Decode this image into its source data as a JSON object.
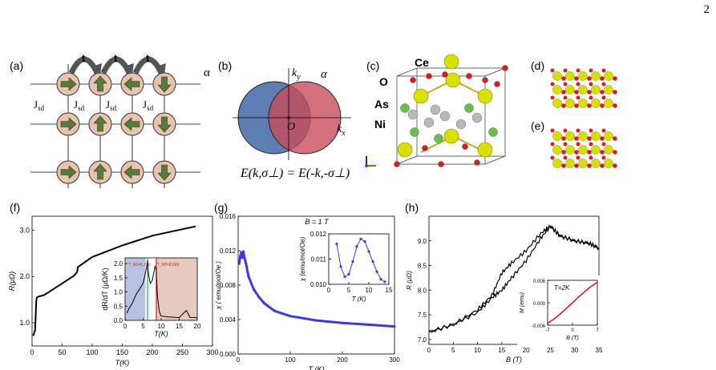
{
  "page_number": "2",
  "panels": {
    "a": {
      "label": "(a)",
      "hop_label": "t",
      "coupling_label": "J",
      "coupling_sub": "sd",
      "alpha": "α",
      "arrow_grid": [
        [
          "right",
          "up",
          "left",
          "down"
        ],
        [
          "right",
          "up",
          "left",
          "down"
        ],
        [
          "right",
          "up",
          "left",
          "down"
        ]
      ]
    },
    "b": {
      "label": "(b)",
      "ky": "k",
      "ky_sub": "y",
      "kx": "k",
      "kx_sub": "x",
      "alpha": "α",
      "origin": "O",
      "equation": "E(k,σ⊥) = E(-k,-σ⊥)"
    },
    "c": {
      "label": "(c)",
      "atoms": [
        "Ce",
        "O",
        "As",
        "Ni"
      ]
    },
    "d": {
      "label": "(d)"
    },
    "e": {
      "label": "(e)"
    }
  },
  "chart_data": [
    {
      "panel": "(f)",
      "type": "line",
      "xlabel": "T(K)",
      "ylabel": "R(μΩ)",
      "xlim": [
        0,
        300
      ],
      "ylim": [
        0.5,
        3.3
      ],
      "xticks": [
        "0",
        "50",
        "100",
        "150",
        "200",
        "250",
        "300"
      ],
      "yticks": [
        "1.0",
        "2.0",
        "3.0"
      ],
      "x": [
        2,
        5,
        7,
        8,
        12,
        20,
        30,
        50,
        70,
        75,
        76,
        100,
        150,
        200,
        250,
        272
      ],
      "y": [
        0.72,
        0.85,
        1.48,
        1.55,
        1.57,
        1.6,
        1.68,
        1.85,
        2.02,
        2.1,
        2.2,
        2.42,
        2.67,
        2.88,
        3.02,
        3.08
      ],
      "inset": {
        "type": "line",
        "xlabel": "T(K)",
        "ylabel": "dR/dT (μΩ/K)",
        "xlim": [
          0,
          20
        ],
        "ylim": [
          0,
          2.2
        ],
        "xticks": [
          "0",
          "5",
          "10",
          "15",
          "20"
        ],
        "yticks": [
          "0.0",
          "0.5",
          "1.0",
          "1.5",
          "2.0"
        ],
        "annotations": [
          "T_N1=6.23K",
          "T_N2=8.66K"
        ],
        "x": [
          0.5,
          1,
          2,
          3,
          4,
          5,
          5.5,
          6,
          6.2,
          6.5,
          7,
          7.5,
          8,
          8.3,
          8.6,
          9,
          9.5,
          10,
          12,
          15,
          17,
          18,
          20
        ],
        "y": [
          0.25,
          0.4,
          0.6,
          0.9,
          1.1,
          1.3,
          1.6,
          1.9,
          2.1,
          1.6,
          1.3,
          1.4,
          1.7,
          1.9,
          1.8,
          0.8,
          0.3,
          0.15,
          0.12,
          0.1,
          0.35,
          0.1,
          0.1
        ]
      }
    },
    {
      "panel": "(g)",
      "type": "scatter",
      "annotation": "B = 1 T",
      "xlabel": "T (K)",
      "ylabel": "χ ( emu/mol/Oe )",
      "xlim": [
        0,
        300
      ],
      "ylim": [
        0,
        0.016
      ],
      "xticks": [
        "0",
        "100",
        "200",
        "300"
      ],
      "yticks": [
        "0.000",
        "0.004",
        "0.008",
        "0.012",
        "0.016"
      ],
      "x": [
        2,
        4,
        6,
        8,
        10,
        12,
        15,
        20,
        30,
        40,
        50,
        70,
        100,
        150,
        200,
        250,
        300
      ],
      "y": [
        0.0105,
        0.0113,
        0.0118,
        0.0112,
        0.0119,
        0.0112,
        0.0105,
        0.009,
        0.0075,
        0.0066,
        0.0059,
        0.005,
        0.0044,
        0.0039,
        0.0036,
        0.0034,
        0.0032
      ],
      "inset": {
        "type": "scatter",
        "xlabel": "T (K)",
        "ylabel": "χ (emu/mol/Oe)",
        "xlim": [
          0,
          15
        ],
        "ylim": [
          0.01,
          0.012
        ],
        "xticks": [
          "0",
          "5",
          "10",
          "15"
        ],
        "yticks": [
          "0.010",
          "0.011",
          "0.012"
        ],
        "x": [
          2,
          3,
          4,
          5,
          6,
          7,
          8,
          9,
          10,
          11,
          12,
          13,
          14
        ],
        "y": [
          0.0116,
          0.0107,
          0.0103,
          0.0104,
          0.0109,
          0.0115,
          0.0118,
          0.0117,
          0.0113,
          0.0109,
          0.0105,
          0.0102,
          0.0101
        ]
      }
    },
    {
      "panel": "(h)",
      "type": "line",
      "xlabel": "B (T)",
      "ylabel": "R (μΩ)",
      "xlim": [
        0,
        35
      ],
      "ylim": [
        6.9,
        9.5
      ],
      "xticks": [
        "0",
        "5",
        "10",
        "15",
        "20",
        "25",
        "30",
        "35"
      ],
      "yticks": [
        "7.0",
        "7.5",
        "8.0",
        "8.5",
        "9.0"
      ],
      "series": [
        {
          "x": [
            0,
            5,
            10,
            13,
            15,
            17,
            20,
            23,
            25,
            27,
            30,
            33,
            35
          ],
          "y": [
            7.15,
            7.3,
            7.6,
            7.9,
            8.35,
            8.55,
            8.8,
            9.15,
            9.3,
            9.1,
            9.0,
            8.95,
            8.85
          ]
        },
        {
          "x": [
            0,
            5,
            10,
            13,
            15,
            17,
            20,
            23,
            25,
            27,
            30,
            33,
            35
          ],
          "y": [
            7.15,
            7.3,
            7.55,
            7.85,
            8.0,
            8.25,
            8.6,
            9.05,
            9.3,
            9.1,
            9.0,
            8.95,
            8.85
          ]
        }
      ],
      "inset": {
        "type": "line",
        "annotation": "T=2K",
        "xlabel": "B (T)",
        "ylabel": "M (emu)",
        "xlim": [
          -7,
          7
        ],
        "ylim": [
          -0.006,
          0.006
        ],
        "xticks": [
          "-7",
          "0",
          "7"
        ],
        "yticks": [
          "-0.006",
          "0.000",
          "0.006"
        ],
        "x": [
          -7,
          -5,
          -3,
          -1,
          0,
          1,
          3,
          5,
          7
        ],
        "y": [
          -0.0055,
          -0.0042,
          -0.0026,
          -0.0009,
          0,
          0.0009,
          0.0026,
          0.0042,
          0.0055
        ]
      }
    }
  ]
}
